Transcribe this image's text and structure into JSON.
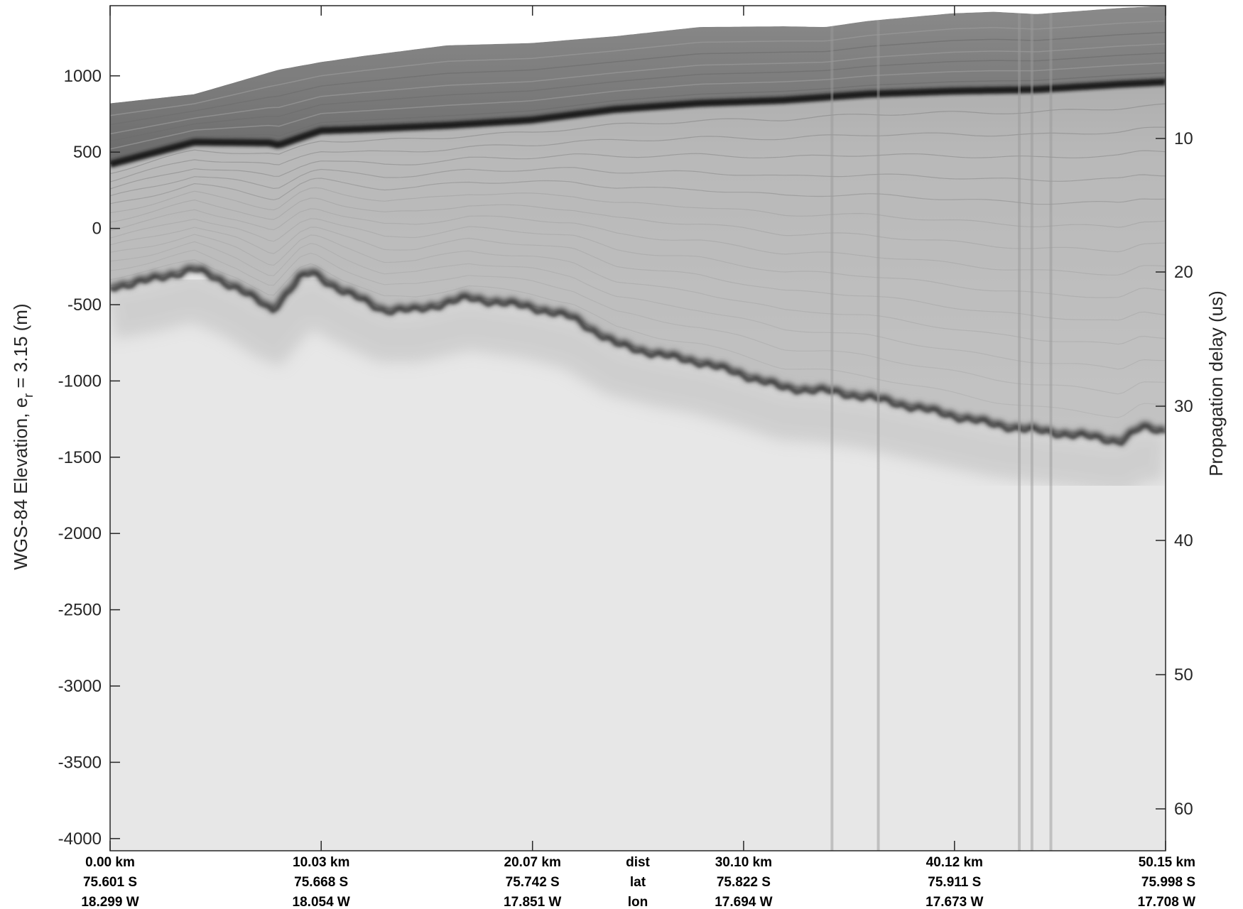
{
  "chart_data": {
    "type": "heatmap",
    "colormap": "grayscale",
    "left_axis": {
      "label_prefix": "WGS-84 Elevation, e",
      "label_sub": "r",
      "label_suffix": " = 3.15 (m)",
      "ticks": [
        "1000",
        "500",
        "0",
        "-500",
        "-1000",
        "-1500",
        "-2000",
        "-2500",
        "-3000",
        "-3500",
        "-4000"
      ],
      "tick_values": [
        1000,
        500,
        0,
        -500,
        -1000,
        -1500,
        -2000,
        -2500,
        -3000,
        -3500,
        -4000
      ],
      "range": [
        -4080,
        1460
      ]
    },
    "right_axis": {
      "label": "Propagation delay (us)",
      "ticks": [
        "10",
        "20",
        "30",
        "40",
        "50",
        "60"
      ],
      "tick_values": [
        10,
        20,
        30,
        40,
        50,
        60
      ]
    },
    "x_range_km": [
      0,
      50.15
    ],
    "bottom_ticks": [
      {
        "dist": "0.00 km",
        "lat": "75.601 S",
        "lon": "18.299 W",
        "x_km": 0.0
      },
      {
        "dist": "10.03 km",
        "lat": "75.668 S",
        "lon": "18.054 W",
        "x_km": 10.03
      },
      {
        "dist": "20.07 km",
        "lat": "75.742 S",
        "lon": "17.851 W",
        "x_km": 20.07
      },
      {
        "dist": "30.10 km",
        "lat": "75.822 S",
        "lon": "17.694 W",
        "x_km": 30.1
      },
      {
        "dist": "40.12 km",
        "lat": "75.911 S",
        "lon": "17.673 W",
        "x_km": 40.12
      },
      {
        "dist": "50.15 km",
        "lat": "75.998 S",
        "lon": "17.708 W",
        "x_km": 50.15
      }
    ],
    "row_labels": {
      "dist": "dist",
      "lat": "lat",
      "lon": "lon"
    },
    "layers": {
      "surface": {
        "x_km": [
          0,
          4,
          8,
          10,
          12,
          16,
          20,
          24,
          28,
          32,
          34,
          36,
          40,
          42,
          44,
          48,
          50.15
        ],
        "elev_m": [
          820,
          880,
          1040,
          1090,
          1130,
          1200,
          1215,
          1260,
          1320,
          1325,
          1320,
          1360,
          1410,
          1420,
          1405,
          1445,
          1460
        ]
      },
      "strong_reflector": {
        "x_km": [
          0,
          4,
          7.6,
          8,
          10,
          12,
          16,
          20,
          24,
          28,
          32,
          36,
          40,
          44,
          48,
          50.15
        ],
        "elev_m": [
          420,
          565,
          560,
          545,
          640,
          650,
          675,
          710,
          780,
          820,
          840,
          880,
          900,
          910,
          945,
          960
        ]
      },
      "bed": {
        "x_km": [
          0,
          2,
          4,
          6,
          7.7,
          9,
          9.6,
          11,
          13,
          14.5,
          17,
          20,
          22,
          24,
          26,
          28,
          30,
          32,
          34,
          36,
          38,
          40,
          42,
          44,
          46,
          48,
          49,
          50.15
        ],
        "elev_m": [
          -380,
          -330,
          -260,
          -380,
          -530,
          -320,
          -285,
          -400,
          -530,
          -530,
          -450,
          -510,
          -580,
          -750,
          -820,
          -870,
          -950,
          -1040,
          -1060,
          -1100,
          -1160,
          -1220,
          -1280,
          -1320,
          -1350,
          -1390,
          -1300,
          -1320
        ]
      }
    },
    "vertical_streaks_km": [
      34.3,
      36.5,
      43.2,
      43.8,
      44.7
    ]
  }
}
